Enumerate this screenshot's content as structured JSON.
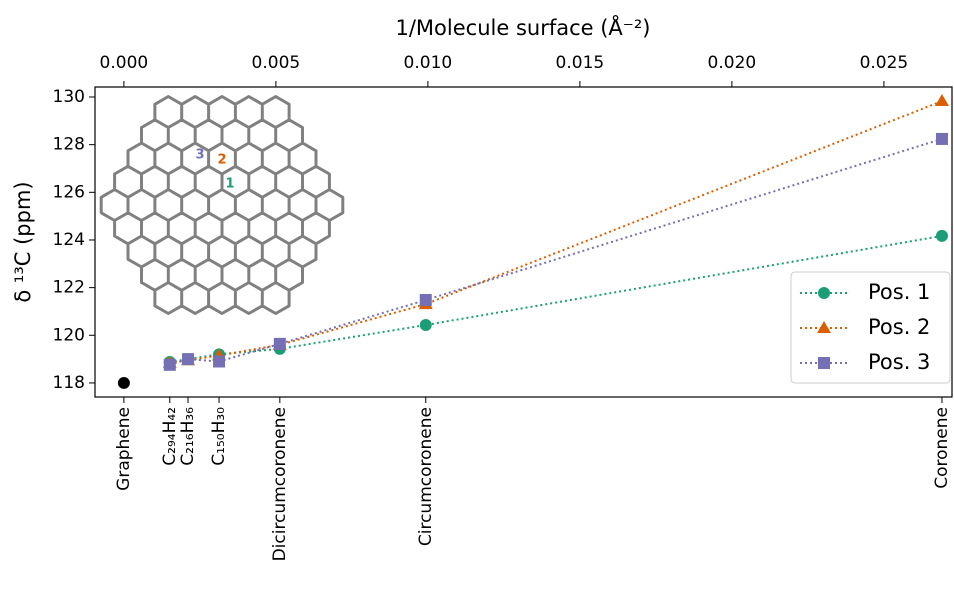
{
  "chart_data": {
    "type": "line",
    "x_label": "1/Molecule surface (Å⁻²)",
    "y_label": "δ ¹³C (ppm)",
    "x": [
      0.00151,
      0.00211,
      0.00313,
      0.00513,
      0.00993,
      0.02691
    ],
    "series": [
      {
        "name": "Pos. 1",
        "color": "#1b9e77",
        "marker": "circle",
        "values": [
          118.88,
          119.0,
          119.2,
          119.43,
          120.43,
          124.17
        ]
      },
      {
        "name": "Pos. 2",
        "color": "#d95f02",
        "marker": "triangle",
        "values": [
          118.85,
          118.95,
          119.15,
          119.6,
          121.31,
          129.83
        ]
      },
      {
        "name": "Pos. 3",
        "color": "#7570b3",
        "marker": "square",
        "values": [
          118.76,
          119.0,
          118.9,
          119.64,
          121.48,
          128.24
        ]
      }
    ],
    "reference_point": {
      "x": 0,
      "y": 118,
      "color": "#000000"
    },
    "linestyle": "dotted",
    "xlim": [
      -0.00095,
      0.02724
    ],
    "ylim": [
      117.41,
      130.42
    ],
    "xticks": [
      {
        "value": 0,
        "label": "0.000"
      },
      {
        "value": 0.005,
        "label": "0.005"
      },
      {
        "value": 0.01,
        "label": "0.010"
      },
      {
        "value": 0.015,
        "label": "0.015"
      },
      {
        "value": 0.02,
        "label": "0.020"
      },
      {
        "value": 0.025,
        "label": "0.025"
      }
    ],
    "yticks": [
      118,
      120,
      122,
      124,
      126,
      128,
      130
    ],
    "bottom_ticks": [
      {
        "value": 0,
        "label": "Graphene"
      },
      {
        "value": 0.00151,
        "label": "C₂₉₄H₄₂"
      },
      {
        "value": 0.00211,
        "label": "C₂₁₆H₃₆"
      },
      {
        "value": 0.00313,
        "label": "C₁₅₀H₃₀"
      },
      {
        "value": 0.00513,
        "label": "Dicircumcoronene"
      },
      {
        "value": 0.00993,
        "label": "Circumcoronene"
      },
      {
        "value": 0.02691,
        "label": "Coronene"
      }
    ],
    "inset_labels": [
      "1",
      "2",
      "3"
    ],
    "legend": "lower right",
    "grid": false
  }
}
